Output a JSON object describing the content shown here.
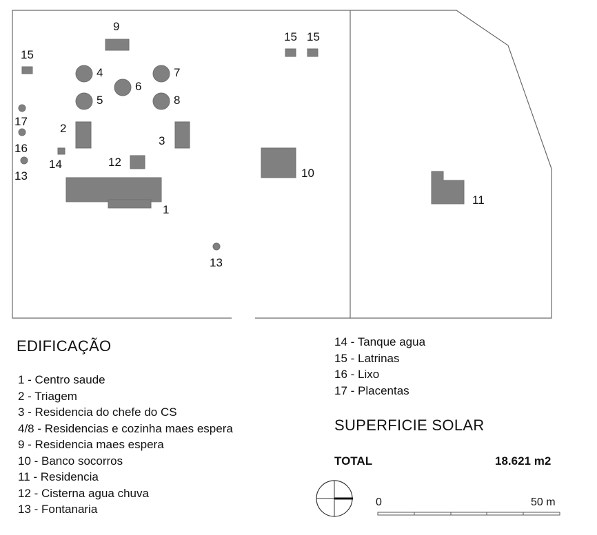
{
  "map": {
    "labels": {
      "l1": "1",
      "l2": "2",
      "l3": "3",
      "l4": "4",
      "l5": "5",
      "l6": "6",
      "l7": "7",
      "l8": "8",
      "l9": "9",
      "l10": "10",
      "l11": "11",
      "l12": "12",
      "l13a": "13",
      "l13b": "13",
      "l14": "14",
      "l15a": "15",
      "l15b": "15",
      "l15c": "15",
      "l16": "16",
      "l17": "17"
    },
    "fill_color": "#808080",
    "line_color": "#6a6a6a"
  },
  "legend": {
    "title": "EDIFICAÇÃO",
    "col1": [
      "1 - Centro saude",
      "2 - Triagem",
      "3 - Residencia do chefe do CS",
      "4/8 - Residencias e cozinha maes espera",
      "9 - Residencia maes espera",
      "10 - Banco socorros",
      "11 - Residencia",
      "12 - Cisterna agua chuva",
      "13 - Fontanaria"
    ],
    "col2": [
      "14 - Tanque agua",
      "15 - Latrinas",
      "16 - Lixo",
      "17 - Placentas"
    ]
  },
  "surface": {
    "heading": "SUPERFICIE SOLAR",
    "total_label": "TOTAL",
    "total_value": "18.621 m2"
  },
  "scale": {
    "start_label": "0",
    "end_label": "50 m"
  },
  "north_icon": "north-arrow-icon"
}
